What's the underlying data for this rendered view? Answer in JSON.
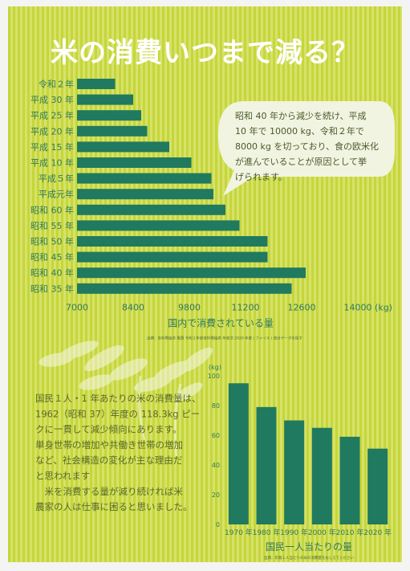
{
  "title": "米の消費いつまで減る？",
  "chart_data": [
    {
      "type": "bar",
      "orientation": "horizontal",
      "categories": [
        "令和２年",
        "平成 30 年",
        "平成 25 年",
        "平成 20 年",
        "平成 15 年",
        "平成 10 年",
        "平成５年",
        "平成元年",
        "昭和 60 年",
        "昭和 55 年",
        "昭和 50 年",
        "昭和 45 年",
        "昭和 40 年",
        "昭和 35 年"
      ],
      "values": [
        7950,
        8400,
        8600,
        8750,
        9300,
        9850,
        10350,
        10400,
        10700,
        11050,
        11750,
        11750,
        12700,
        12350
      ],
      "xlim": [
        7000,
        14000
      ],
      "xticks": [
        7000,
        8400,
        9800,
        11200,
        12600,
        14000
      ],
      "xunit": "(kg)",
      "xlabel": "国内で消費されている量",
      "source": "出典：食料需給表 概算 令和２年度食料需給表 年度次 2020 年度 | ファイル | 統計データを探す",
      "bar_color": "#1f7a5f"
    },
    {
      "type": "bar",
      "categories": [
        "1970 年",
        "1980 年",
        "1990 年",
        "2000 年",
        "2010 年",
        "2020 年"
      ],
      "values": [
        95,
        79,
        70,
        65,
        59,
        51
      ],
      "ylim": [
        0,
        100
      ],
      "yticks": [
        0,
        20,
        40,
        60,
        80,
        100
      ],
      "yunit": "(kg)",
      "xlabel": "国民一人当たりの量",
      "source": "出典：年間１人当たりの米の消費量をおしえてください",
      "bar_color": "#1f7a5f"
    }
  ],
  "bubble": {
    "lines": [
      "昭和 40 年から減少を続け、平成",
      "10 年で 10000 kg、令和２年で",
      "8000 kg を切っており、食の欧米化",
      "が進んでいることが原因として挙",
      "げられます。"
    ]
  },
  "paragraph": {
    "lines": [
      "国民１人・1 年あたりの米の消費量は、",
      "1962（昭和 37）年度の 118.3kg ピー",
      "クに一貫して減少傾向にあります。",
      "単身世帯の増加や共働き世帯の増加",
      "など、社会構造の変化が主な理由だ",
      "と思われます",
      "　米を消費する量が減り続ければ米",
      "農家の人は仕事に困ると思いました。"
    ]
  }
}
